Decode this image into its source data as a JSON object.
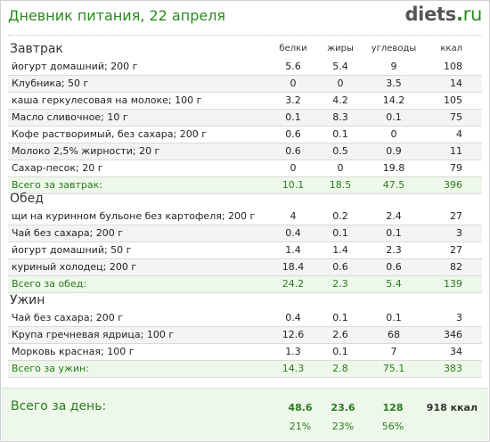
{
  "header": {
    "title": "Дневник питания, 22 апреля",
    "logo_main": "diets",
    "logo_dot": ".",
    "logo_tld": "ru"
  },
  "columns": {
    "protein": "белки",
    "fat": "жиры",
    "carbs": "углеводы",
    "kcal": "ккал"
  },
  "meals": [
    {
      "name": "Завтрак",
      "items": [
        {
          "name": "йогурт домашний; 200 г",
          "protein": "5.6",
          "fat": "5.4",
          "carbs": "9",
          "kcal": "108"
        },
        {
          "name": "Клубника; 50 г",
          "protein": "0",
          "fat": "0",
          "carbs": "3.5",
          "kcal": "14"
        },
        {
          "name": "каша геркулесовая на молоке; 100 г",
          "protein": "3.2",
          "fat": "4.2",
          "carbs": "14.2",
          "kcal": "105"
        },
        {
          "name": "Масло сливочное; 10 г",
          "protein": "0.1",
          "fat": "8.3",
          "carbs": "0.1",
          "kcal": "75"
        },
        {
          "name": "Кофе растворимый, без сахара; 200 г",
          "protein": "0.6",
          "fat": "0.1",
          "carbs": "0",
          "kcal": "4"
        },
        {
          "name": "Молоко 2,5% жирности; 20 г",
          "protein": "0.6",
          "fat": "0.5",
          "carbs": "0.9",
          "kcal": "11"
        },
        {
          "name": "Сахар-песок; 20 г",
          "protein": "0",
          "fat": "0",
          "carbs": "19.8",
          "kcal": "79"
        }
      ],
      "total": {
        "label": "Всего за завтрак:",
        "protein": "10.1",
        "fat": "18.5",
        "carbs": "47.5",
        "kcal": "396"
      }
    },
    {
      "name": "Обед",
      "items": [
        {
          "name": "щи на куринном бульоне без картофеля; 200 г",
          "protein": "4",
          "fat": "0.2",
          "carbs": "2.4",
          "kcal": "27"
        },
        {
          "name": "Чай без сахара; 200 г",
          "protein": "0.4",
          "fat": "0.1",
          "carbs": "0.1",
          "kcal": "3"
        },
        {
          "name": "йогурт домашний; 50 г",
          "protein": "1.4",
          "fat": "1.4",
          "carbs": "2.3",
          "kcal": "27"
        },
        {
          "name": "куриный холодец; 200 г",
          "protein": "18.4",
          "fat": "0.6",
          "carbs": "0.6",
          "kcal": "82"
        }
      ],
      "total": {
        "label": "Всего за обед:",
        "protein": "24.2",
        "fat": "2.3",
        "carbs": "5.4",
        "kcal": "139"
      }
    },
    {
      "name": "Ужин",
      "items": [
        {
          "name": "Чай без сахара; 200 г",
          "protein": "0.4",
          "fat": "0.1",
          "carbs": "0.1",
          "kcal": "3"
        },
        {
          "name": "Крупа гречневая ядрица; 100 г",
          "protein": "12.6",
          "fat": "2.6",
          "carbs": "68",
          "kcal": "346"
        },
        {
          "name": "Морковь красная; 100 г",
          "protein": "1.3",
          "fat": "0.1",
          "carbs": "7",
          "kcal": "34"
        }
      ],
      "total": {
        "label": "Всего за ужин:",
        "protein": "14.3",
        "fat": "2.8",
        "carbs": "75.1",
        "kcal": "383"
      }
    }
  ],
  "day_total": {
    "label": "Всего за день:",
    "protein": "48.6",
    "fat": "23.6",
    "carbs": "128",
    "kcal": "918 ккал",
    "protein_pct": "21%",
    "fat_pct": "23%",
    "carbs_pct": "56%"
  },
  "colors": {
    "accent": "#2a8a1f",
    "total_bg": "#eef8ea",
    "row_alt": "#f4f4f4"
  }
}
